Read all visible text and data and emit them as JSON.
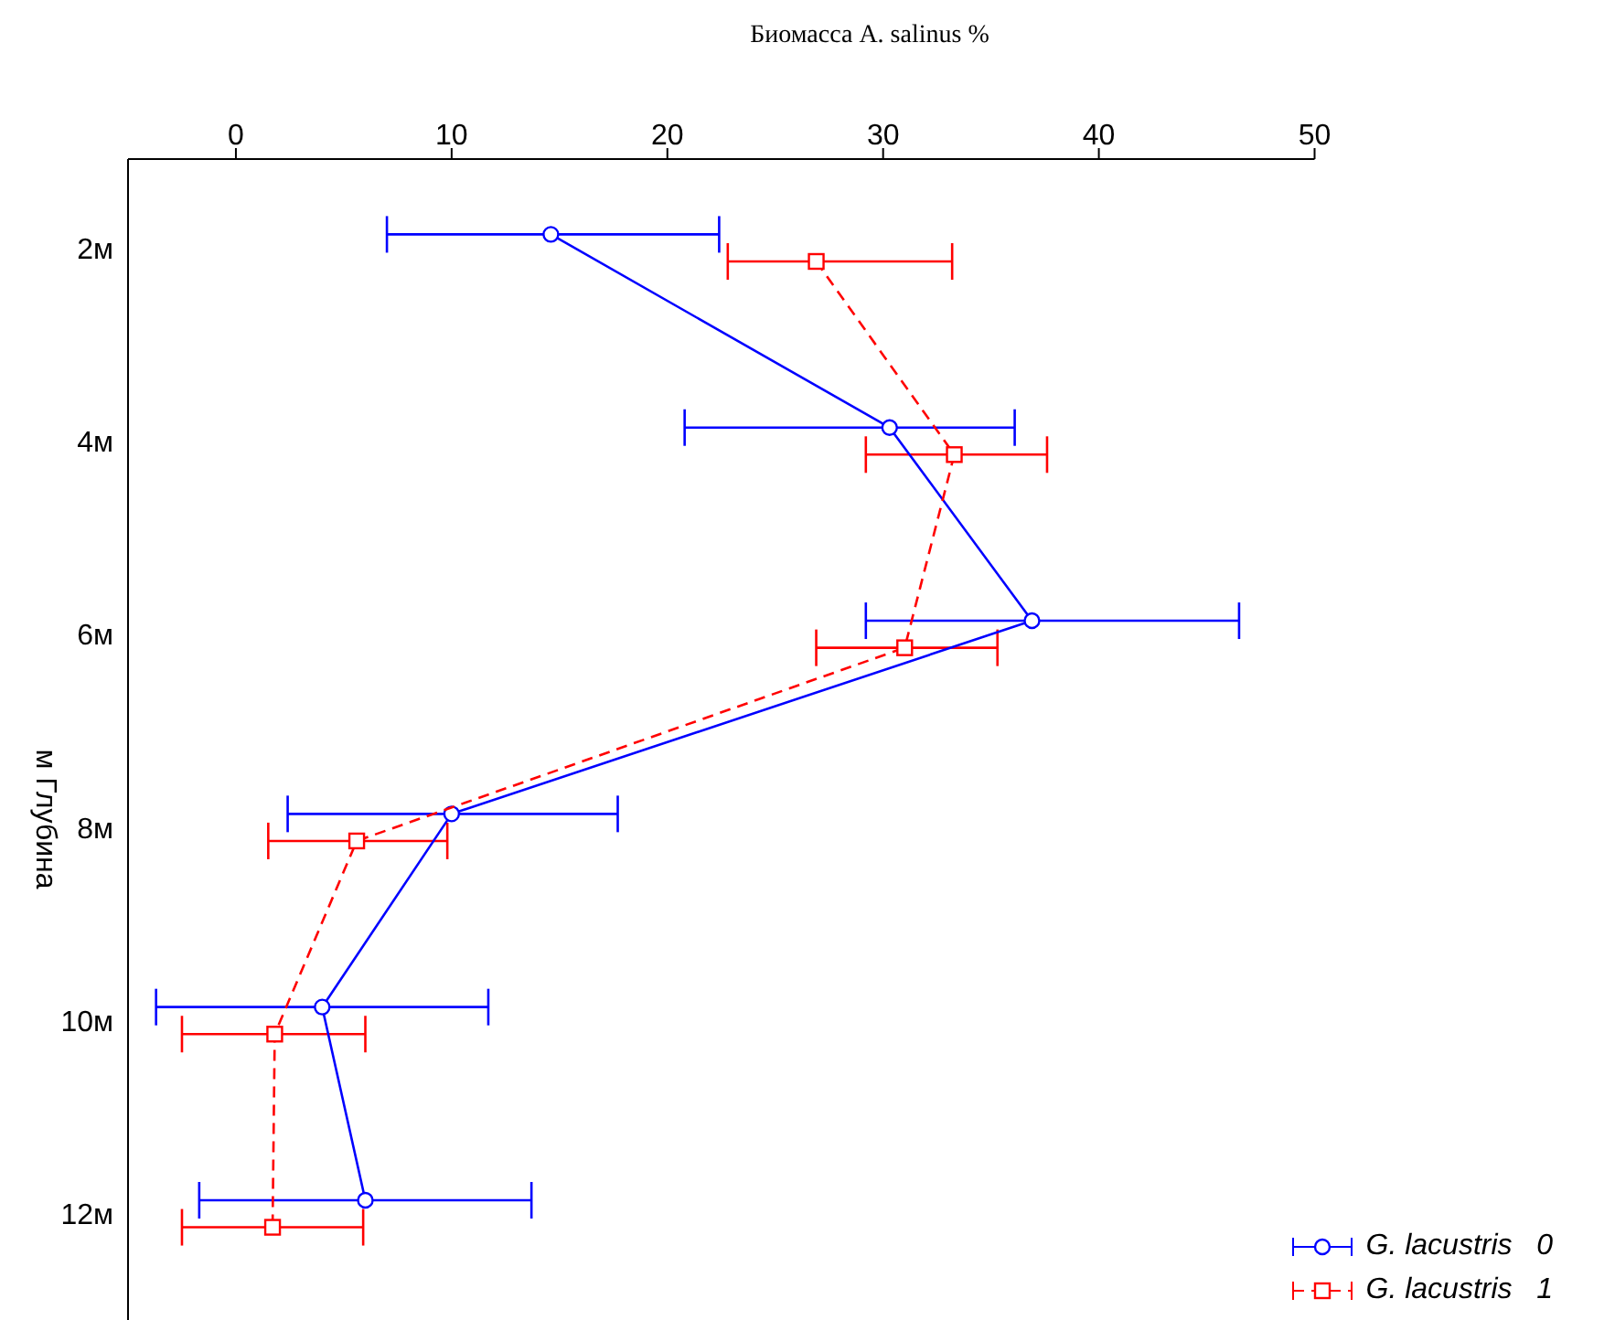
{
  "chart_data": {
    "type": "line",
    "xlabel": "Биомасса A. salinus %",
    "ylabel": "м Глубина",
    "orientation": "horizontal",
    "categories": [
      "2м",
      "4м",
      "6м",
      "8м",
      "10м",
      "12м"
    ],
    "xlim": [
      -5,
      50
    ],
    "xticks": [
      0,
      10,
      20,
      30,
      40,
      50
    ],
    "legend": "bottom right",
    "grid": false,
    "series": [
      {
        "name": "G. lacustris   0",
        "color": "#0000ff",
        "marker": "circle",
        "line_style": "solid",
        "values": [
          14.6,
          30.3,
          36.9,
          10.0,
          4.0,
          6.0
        ],
        "errors": [
          [
            7.0,
            22.4
          ],
          [
            20.8,
            36.1
          ],
          [
            29.2,
            46.5
          ],
          [
            2.4,
            17.7
          ],
          [
            -3.7,
            11.7
          ],
          [
            -1.7,
            13.7
          ]
        ]
      },
      {
        "name": "G. lacustris   1",
        "color": "#ff0000",
        "marker": "square",
        "line_style": "dashed",
        "values": [
          26.9,
          33.3,
          31.0,
          5.6,
          1.8,
          1.7
        ],
        "errors": [
          [
            22.8,
            33.2
          ],
          [
            29.2,
            37.6
          ],
          [
            26.9,
            35.3
          ],
          [
            1.5,
            9.8
          ],
          [
            -2.5,
            6.0
          ],
          [
            -2.5,
            5.9
          ]
        ]
      }
    ]
  }
}
